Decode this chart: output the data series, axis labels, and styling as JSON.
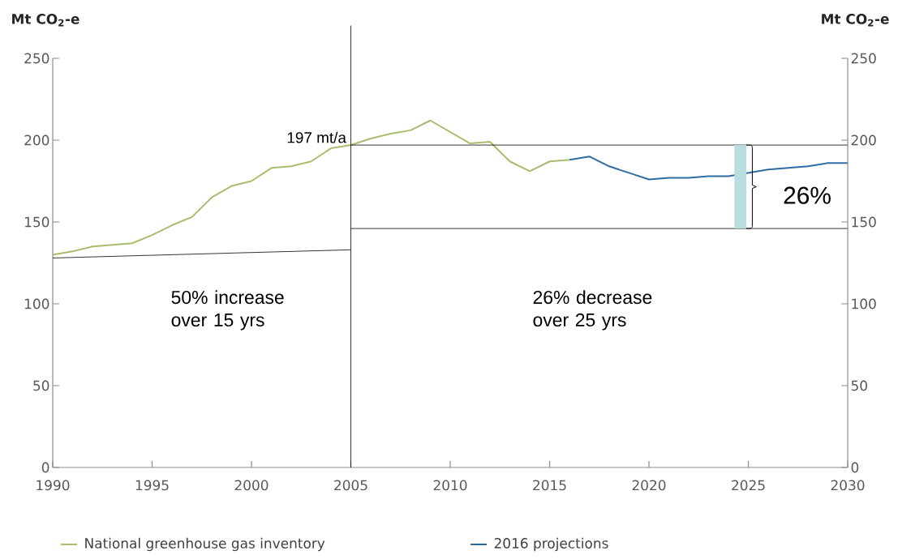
{
  "chart_data": {
    "type": "line",
    "ylabel": "Mt CO$_{2}$-e",
    "y2label": "Mt CO$_{2}$-e",
    "xlim": [
      1990,
      2030
    ],
    "xticks": [
      1990,
      1995,
      2000,
      2005,
      2010,
      2015,
      2020,
      2025,
      2030
    ],
    "ylim": [
      0,
      250
    ],
    "yticks": [
      0,
      50,
      100,
      150,
      200,
      250
    ],
    "y2lim": [
      0,
      250
    ],
    "y2ticks": [
      0,
      50,
      100,
      150,
      200,
      250
    ],
    "legend": "bottom",
    "series": [
      {
        "name": "National greenhouse gas inventory",
        "color": "#a8be6c",
        "x": [
          1990,
          1991,
          1992,
          1993,
          1994,
          1995,
          1996,
          1997,
          1998,
          1999,
          2000,
          2001,
          2002,
          2003,
          2004,
          2005,
          2006,
          2007,
          2008,
          2009,
          2010,
          2011,
          2012,
          2013,
          2014,
          2015,
          2016
        ],
        "values": [
          130,
          132,
          135,
          136,
          137,
          142,
          148,
          153,
          165,
          172,
          175,
          183,
          184,
          187,
          195,
          197,
          201,
          204,
          206,
          212,
          205,
          198,
          199,
          187,
          181,
          187,
          188
        ]
      },
      {
        "name": "2016 projections",
        "color": "#2e6da4",
        "x": [
          2016,
          2017,
          2018,
          2019,
          2020,
          2021,
          2022,
          2023,
          2024,
          2025,
          2026,
          2027,
          2028,
          2029,
          2030
        ],
        "values": [
          188,
          190,
          184,
          180,
          176,
          177,
          177,
          178,
          178,
          180,
          182,
          183,
          184,
          186,
          186
        ]
      },
      {
        "type": "line",
        "color": "#000000",
        "x": [
          1990,
          2005
        ],
        "values": [
          128,
          133
        ]
      },
      {
        "type": "line",
        "color": "#000000",
        "x": [
          2005,
          2030
        ],
        "values": [
          197,
          197
        ]
      },
      {
        "type": "line",
        "color": "#000000",
        "x": [
          2005,
          2030
        ],
        "values": [
          146,
          146
        ]
      },
      {
        "type": "bar",
        "color": "#b7dde0",
        "x": [
          2024.6
        ],
        "values": [
          51
        ],
        "base": [
          146
        ]
      }
    ],
    "ref_lines": [
      {
        "axis": "x",
        "value": 2005,
        "color": "#000000"
      }
    ],
    "annotations": [
      {
        "text": "197 mt/a",
        "x": 2005,
        "y": 197
      },
      "26%",
      "50% increase over 15 yrs",
      "26% decrease over 25 yrs"
    ]
  }
}
